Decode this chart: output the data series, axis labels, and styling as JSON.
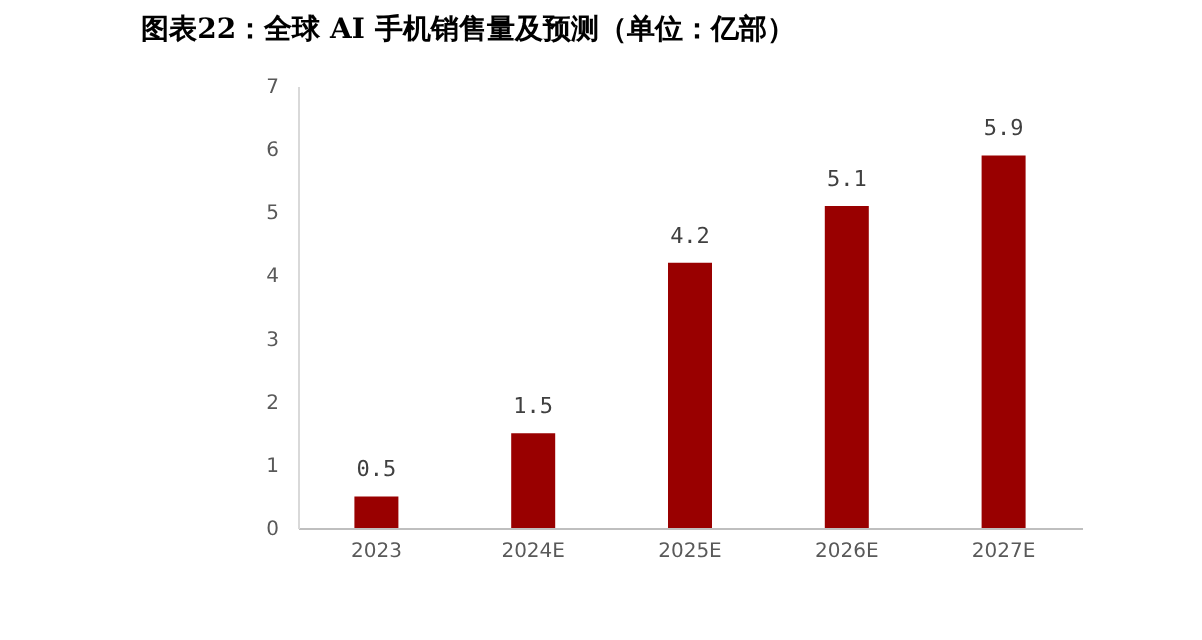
{
  "chart_data": {
    "type": "bar",
    "title": "图表22：全球 AI 手机销售量及预测（单位：亿部）",
    "categories": [
      "2023",
      "2024E",
      "2025E",
      "2026E",
      "2027E"
    ],
    "values": [
      0.5,
      1.5,
      4.2,
      5.1,
      5.9
    ],
    "color": "#990000",
    "ylim": [
      0,
      7
    ],
    "yticks": [
      0,
      1,
      2,
      3,
      4,
      5,
      6,
      7
    ],
    "data_labels": true,
    "grid": false
  }
}
